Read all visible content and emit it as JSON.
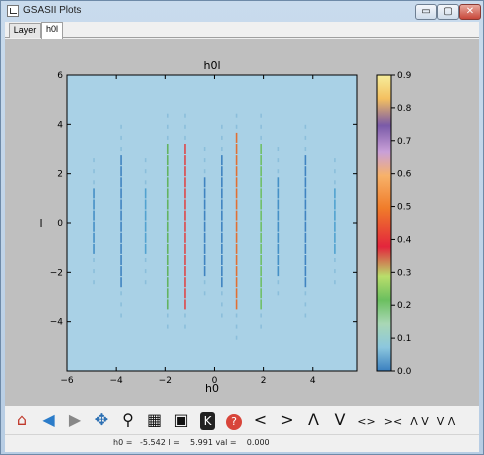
{
  "window": {
    "title": "GSASII Plots",
    "min_glyph": "▭",
    "max_glyph": "▢",
    "close_glyph": "✕"
  },
  "tabs": [
    {
      "label": "Layer"
    },
    {
      "label": "h0l",
      "selected": true
    }
  ],
  "plot": {
    "title": "h0l",
    "xlabel": "h0",
    "ylabel": "l",
    "xticks": [
      "−6",
      "−4",
      "−2",
      "0",
      "2",
      "4"
    ],
    "yticks": [
      "6",
      "4",
      "2",
      "0",
      "−2",
      "−4"
    ],
    "colorbar_ticks": [
      "0.9",
      "0.8",
      "0.7",
      "0.6",
      "0.5",
      "0.4",
      "0.3",
      "0.2",
      "0.1",
      "0.0"
    ],
    "colormap": "Spectral (reversed)",
    "background_color": "#a9d1e6"
  },
  "chart_data": {
    "type": "heatmap",
    "title": "h0l",
    "xlabel": "h0",
    "ylabel": "l",
    "xlim": [
      -6,
      5.8
    ],
    "ylim": [
      -6,
      6
    ],
    "zlim": [
      0.0,
      0.9
    ],
    "grid": false,
    "colorbar": "right"
  },
  "toolbar": {
    "buttons": [
      {
        "name": "home-button",
        "icon": "home-icon",
        "glyph": "⌂"
      },
      {
        "name": "back-button",
        "icon": "arrow-left-icon",
        "glyph": "◀"
      },
      {
        "name": "forward-button",
        "icon": "arrow-right-icon",
        "glyph": "▶"
      },
      {
        "name": "pan-button",
        "icon": "move-icon",
        "glyph": "✥"
      },
      {
        "name": "zoom-button",
        "icon": "magnify-icon",
        "glyph": "⚲"
      },
      {
        "name": "subplots-button",
        "icon": "configure-icon",
        "glyph": "▦"
      },
      {
        "name": "save-button",
        "icon": "floppy-icon",
        "glyph": "▣"
      },
      {
        "name": "k-button",
        "icon": "k-icon",
        "glyph": "K"
      },
      {
        "name": "help-button",
        "icon": "help-icon",
        "glyph": "?"
      },
      {
        "name": "left-button",
        "icon": "chevron-left-icon",
        "glyph": "<"
      },
      {
        "name": "right-button",
        "icon": "chevron-right-icon",
        "glyph": ">"
      },
      {
        "name": "up-button",
        "icon": "chevron-up-icon",
        "glyph": "Λ"
      },
      {
        "name": "down-button",
        "icon": "chevron-down-icon",
        "glyph": "V"
      },
      {
        "name": "expand-h-button",
        "icon": "expand-horizontal-icon",
        "glyph": "<>"
      },
      {
        "name": "shrink-h-button",
        "icon": "shrink-horizontal-icon",
        "glyph": "><"
      },
      {
        "name": "expand-v-button",
        "icon": "expand-vertical-icon",
        "glyph": "Λ V"
      },
      {
        "name": "shrink-v-button",
        "icon": "shrink-vertical-icon",
        "glyph": "V Λ"
      }
    ]
  },
  "status": {
    "text": "h0 =   -5.542 l =    5.991 val =    0.000"
  }
}
